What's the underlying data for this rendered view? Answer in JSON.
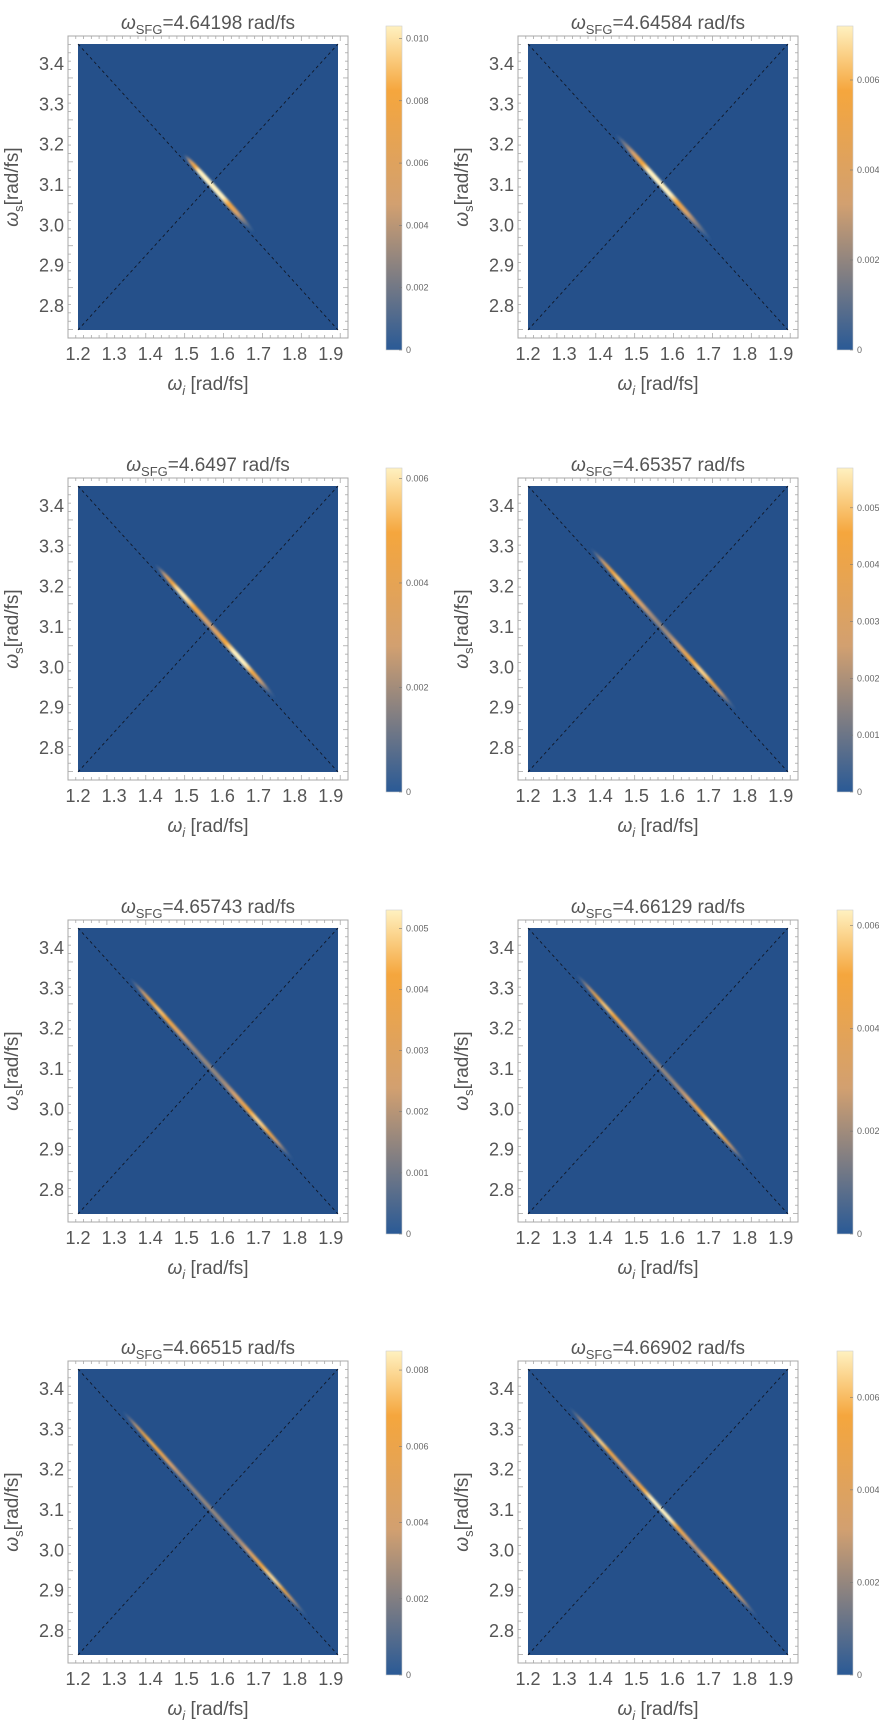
{
  "chart_data": [
    {
      "type": "heatmap",
      "title": "4.64198 rad/fs",
      "xlabel": "[rad/fs]",
      "ylabel": "[rad/fs]",
      "xlim": [
        1.2,
        1.92
      ],
      "ylim": [
        2.74,
        3.45
      ],
      "xticks": [
        "1.2",
        "1.3",
        "1.4",
        "1.5",
        "1.6",
        "1.7",
        "1.8",
        "1.9"
      ],
      "yticks": [
        "2.8",
        "2.9",
        "3.0",
        "3.1",
        "3.2",
        "3.3",
        "3.4"
      ],
      "colorbar": {
        "range": [
          0,
          0.0104
        ],
        "ticks": [
          "0",
          "0.002",
          "0.004",
          "0.006",
          "0.008",
          "0.010"
        ],
        "tick_values": [
          0,
          0.002,
          0.004,
          0.006,
          0.008,
          0.01
        ]
      },
      "ridge": {
        "wi_start": 1.5,
        "wi_end": 1.68,
        "peaks": [
          [
            1.57,
            1.0
          ]
        ],
        "width": 0.006
      },
      "guide_lines": "dashed diagonals"
    },
    {
      "type": "heatmap",
      "title": "4.64584 rad/fs",
      "xlabel": "[rad/fs]",
      "ylabel": "[rad/fs]",
      "xlim": [
        1.2,
        1.92
      ],
      "ylim": [
        2.74,
        3.45
      ],
      "xticks": [
        "1.2",
        "1.3",
        "1.4",
        "1.5",
        "1.6",
        "1.7",
        "1.8",
        "1.9"
      ],
      "yticks": [
        "2.8",
        "2.9",
        "3.0",
        "3.1",
        "3.2",
        "3.3",
        "3.4"
      ],
      "colorbar": {
        "range": [
          0,
          0.0072
        ],
        "ticks": [
          "0",
          "0.002",
          "0.004",
          "0.006"
        ],
        "tick_values": [
          0,
          0.002,
          0.004,
          0.006
        ]
      },
      "ridge": {
        "wi_start": 1.45,
        "wi_end": 1.7,
        "peaks": [
          [
            1.57,
            0.9
          ]
        ],
        "width": 0.006
      },
      "guide_lines": "dashed diagonals"
    },
    {
      "type": "heatmap",
      "title": "4.6497 rad/fs",
      "xlabel": "[rad/fs]",
      "ylabel": "[rad/fs]",
      "xlim": [
        1.2,
        1.92
      ],
      "ylim": [
        2.74,
        3.45
      ],
      "xticks": [
        "1.2",
        "1.3",
        "1.4",
        "1.5",
        "1.6",
        "1.7",
        "1.8",
        "1.9"
      ],
      "yticks": [
        "2.8",
        "2.9",
        "3.0",
        "3.1",
        "3.2",
        "3.3",
        "3.4"
      ],
      "colorbar": {
        "range": [
          0,
          0.0062
        ],
        "ticks": [
          "0",
          "0.002",
          "0.004",
          "0.006"
        ],
        "tick_values": [
          0,
          0.002,
          0.004,
          0.006
        ]
      },
      "ridge": {
        "wi_start": 1.42,
        "wi_end": 1.74,
        "peaks": [
          [
            1.48,
            0.85
          ],
          [
            1.66,
            0.85
          ]
        ],
        "width": 0.006
      },
      "guide_lines": "dashed diagonals"
    },
    {
      "type": "heatmap",
      "title": "4.65357 rad/fs",
      "xlabel": "[rad/fs]",
      "ylabel": "[rad/fs]",
      "xlim": [
        1.2,
        1.92
      ],
      "ylim": [
        2.74,
        3.45
      ],
      "xticks": [
        "1.2",
        "1.3",
        "1.4",
        "1.5",
        "1.6",
        "1.7",
        "1.8",
        "1.9"
      ],
      "yticks": [
        "2.8",
        "2.9",
        "3.0",
        "3.1",
        "3.2",
        "3.3",
        "3.4"
      ],
      "colorbar": {
        "range": [
          0,
          0.0057
        ],
        "ticks": [
          "0",
          "0.001",
          "0.002",
          "0.003",
          "0.004",
          "0.005"
        ],
        "tick_values": [
          0,
          0.001,
          0.002,
          0.003,
          0.004,
          0.005
        ]
      },
      "ridge": {
        "wi_start": 1.38,
        "wi_end": 1.77,
        "peaks": [
          [
            1.44,
            0.8
          ],
          [
            1.7,
            0.8
          ]
        ],
        "width": 0.0055
      },
      "guide_lines": "dashed diagonals"
    },
    {
      "type": "heatmap",
      "title": "4.65743 rad/fs",
      "xlabel": "[rad/fs]",
      "ylabel": "[rad/fs]",
      "xlim": [
        1.2,
        1.92
      ],
      "ylim": [
        2.74,
        3.45
      ],
      "xticks": [
        "1.2",
        "1.3",
        "1.4",
        "1.5",
        "1.6",
        "1.7",
        "1.8",
        "1.9"
      ],
      "yticks": [
        "2.8",
        "2.9",
        "3.0",
        "3.1",
        "3.2",
        "3.3",
        "3.4"
      ],
      "colorbar": {
        "range": [
          0,
          0.0053
        ],
        "ticks": [
          "0",
          "0.001",
          "0.002",
          "0.003",
          "0.004",
          "0.005"
        ],
        "tick_values": [
          0,
          0.001,
          0.002,
          0.003,
          0.004,
          0.005
        ]
      },
      "ridge": {
        "wi_start": 1.35,
        "wi_end": 1.79,
        "peaks": [
          [
            1.41,
            0.85
          ],
          [
            1.72,
            0.85
          ]
        ],
        "width": 0.0055
      },
      "guide_lines": "dashed diagonals"
    },
    {
      "type": "heatmap",
      "title": "4.66129 rad/fs",
      "xlabel": "[rad/fs]",
      "ylabel": "[rad/fs]",
      "xlim": [
        1.2,
        1.92
      ],
      "ylim": [
        2.74,
        3.45
      ],
      "xticks": [
        "1.2",
        "1.3",
        "1.4",
        "1.5",
        "1.6",
        "1.7",
        "1.8",
        "1.9"
      ],
      "yticks": [
        "2.8",
        "2.9",
        "3.0",
        "3.1",
        "3.2",
        "3.3",
        "3.4"
      ],
      "colorbar": {
        "range": [
          0,
          0.0063
        ],
        "ticks": [
          "0",
          "0.002",
          "0.004",
          "0.006"
        ],
        "tick_values": [
          0,
          0.002,
          0.004,
          0.006
        ]
      },
      "ridge": {
        "wi_start": 1.34,
        "wi_end": 1.8,
        "peaks": [
          [
            1.4,
            0.9
          ],
          [
            1.73,
            0.9
          ]
        ],
        "width": 0.005
      },
      "guide_lines": "dashed diagonals"
    },
    {
      "type": "heatmap",
      "title": "4.66515 rad/fs",
      "xlabel": "[rad/fs]",
      "ylabel": "[rad/fs]",
      "xlim": [
        1.2,
        1.92
      ],
      "ylim": [
        2.74,
        3.45
      ],
      "xticks": [
        "1.2",
        "1.3",
        "1.4",
        "1.5",
        "1.6",
        "1.7",
        "1.8",
        "1.9"
      ],
      "yticks": [
        "2.8",
        "2.9",
        "3.0",
        "3.1",
        "3.2",
        "3.3",
        "3.4"
      ],
      "colorbar": {
        "range": [
          0,
          0.0085
        ],
        "ticks": [
          "0",
          "0.002",
          "0.004",
          "0.006",
          "0.008"
        ],
        "tick_values": [
          0,
          0.002,
          0.004,
          0.006,
          0.008
        ]
      },
      "ridge": {
        "wi_start": 1.33,
        "wi_end": 1.83,
        "peaks": [
          [
            1.38,
            0.95
          ],
          [
            1.76,
            0.95
          ]
        ],
        "width": 0.005
      },
      "guide_lines": "dashed diagonals"
    },
    {
      "type": "heatmap",
      "title": "4.66902 rad/fs",
      "xlabel": "[rad/fs]",
      "ylabel": "[rad/fs]",
      "xlim": [
        1.2,
        1.92
      ],
      "ylim": [
        2.74,
        3.45
      ],
      "xticks": [
        "1.2",
        "1.3",
        "1.4",
        "1.5",
        "1.6",
        "1.7",
        "1.8",
        "1.9"
      ],
      "yticks": [
        "2.8",
        "2.9",
        "3.0",
        "3.1",
        "3.2",
        "3.3",
        "3.4"
      ],
      "colorbar": {
        "range": [
          0,
          0.007
        ],
        "ticks": [
          "0",
          "0.002",
          "0.004",
          "0.006"
        ],
        "tick_values": [
          0,
          0.002,
          0.004,
          0.006
        ]
      },
      "ridge": {
        "wi_start": 1.32,
        "wi_end": 1.83,
        "peaks": [
          [
            1.38,
            1.0
          ],
          [
            1.57,
            0.85
          ],
          [
            1.77,
            0.9
          ]
        ],
        "width": 0.005
      },
      "guide_lines": "dashed diagonals"
    }
  ],
  "colors": {
    "background": "#25508a",
    "low": "#2a5a96",
    "mid": "#d2a070",
    "high": "#f5a63d",
    "peak": "#fff1c0",
    "frame": "#a8a8a8",
    "dash": "#101828"
  }
}
